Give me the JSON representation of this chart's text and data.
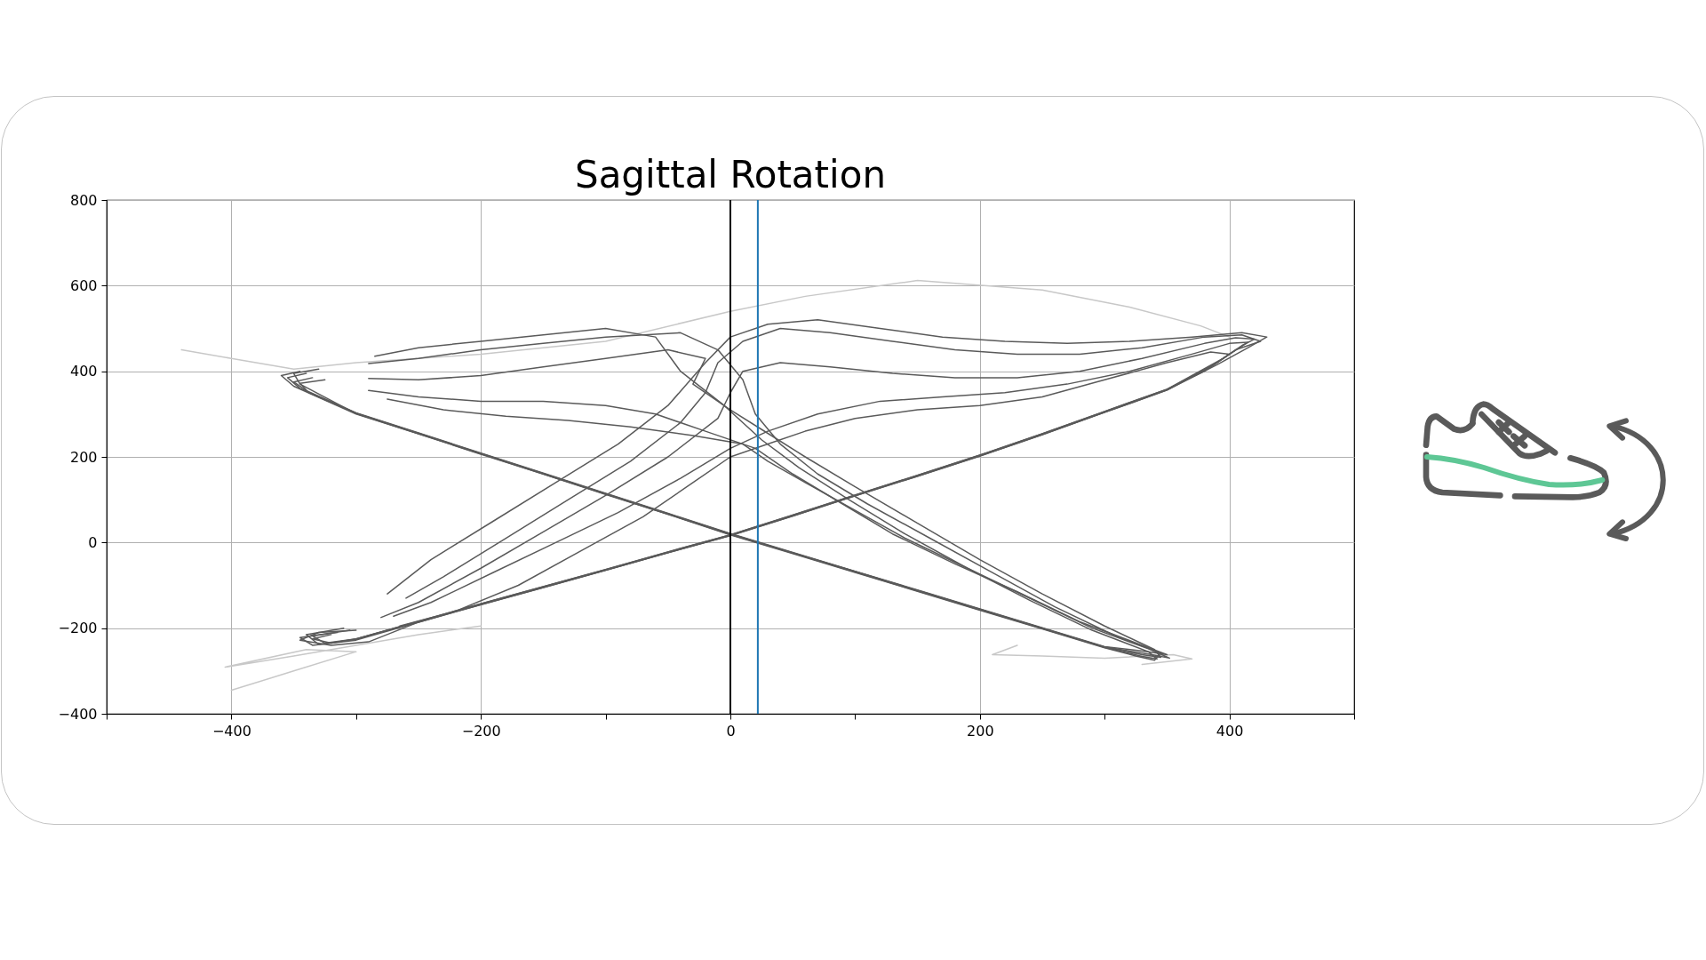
{
  "chart_data": {
    "type": "line",
    "title": "Sagittal Rotation",
    "xlim": [
      -500,
      500
    ],
    "ylim": [
      -400,
      800
    ],
    "xticks": [
      {
        "value": -500,
        "label": null
      },
      {
        "value": -400,
        "label": "−400"
      },
      {
        "value": -300,
        "label": null
      },
      {
        "value": -200,
        "label": "−200"
      },
      {
        "value": -100,
        "label": null
      },
      0,
      {
        "value": 100,
        "label": null
      },
      200,
      {
        "value": 300,
        "label": null
      },
      400,
      {
        "value": 500,
        "label": null
      }
    ],
    "yticks": [
      {
        "value": -400,
        "label": "−400"
      },
      {
        "value": -200,
        "label": "−200"
      },
      0,
      200,
      400,
      600,
      800
    ],
    "grid": true,
    "ref_lines": [
      {
        "axis": "x",
        "value": 0,
        "color": "#000000"
      },
      {
        "axis": "x",
        "value": 22,
        "color": "#1f77b4"
      }
    ],
    "series": [
      {
        "color": "#c8c8c8",
        "x": [
          -440,
          -400,
          -350,
          -300,
          -200,
          -100,
          0,
          60,
          150,
          250,
          320,
          377,
          400
        ],
        "values": [
          450,
          430,
          405,
          420,
          440,
          470,
          540,
          575,
          612,
          590,
          550,
          506,
          480
        ]
      },
      {
        "color": "#c8c8c8",
        "x": [
          -400,
          -350,
          -300,
          -340,
          -405,
          -350,
          -300,
          -250,
          -200
        ],
        "values": [
          -345,
          -300,
          -255,
          -250,
          -291,
          -265,
          -240,
          -215,
          -195
        ]
      },
      {
        "color": "#c8c8c8",
        "x": [
          330,
          370,
          355,
          300,
          250,
          210,
          230
        ],
        "values": [
          -285,
          -272,
          -262,
          -270,
          -265,
          -262,
          -240
        ]
      },
      {
        "color": "#5a5a5a",
        "x": [
          -340,
          -355,
          -345,
          -300,
          -250,
          -200,
          -150,
          -100,
          -50,
          0,
          50,
          100,
          150,
          200,
          250,
          300,
          330,
          345,
          340,
          300,
          250,
          200,
          150,
          100,
          60,
          30,
          0,
          -30,
          -20,
          -50,
          -100,
          -150,
          -200,
          -250,
          -290
        ],
        "values": [
          395,
          385,
          360,
          302,
          255,
          208,
          161,
          114,
          67,
          20,
          -24,
          -68,
          -112,
          -156,
          -200,
          -244,
          -262,
          -268,
          -250,
          -195,
          -120,
          -40,
          45,
          130,
          200,
          255,
          310,
          370,
          430,
          450,
          430,
          410,
          390,
          380,
          383
        ]
      },
      {
        "color": "#5a5a5a",
        "x": [
          -345,
          -360,
          -350,
          -300,
          -250,
          -200,
          -150,
          -100,
          -50,
          0,
          50,
          100,
          150,
          200,
          250,
          300,
          325,
          340,
          345,
          310,
          260,
          210,
          160,
          110,
          70,
          40,
          20,
          10,
          -10,
          -40,
          -100,
          -150,
          -200,
          -250,
          -290
        ],
        "values": [
          400,
          390,
          365,
          300,
          254,
          206,
          160,
          112,
          66,
          18,
          -26,
          -70,
          -114,
          -158,
          -202,
          -246,
          -265,
          -275,
          -258,
          -220,
          -150,
          -70,
          10,
          90,
          160,
          230,
          300,
          380,
          450,
          490,
          480,
          465,
          450,
          430,
          418
        ]
      },
      {
        "color": "#5a5a5a",
        "x": [
          -335,
          -350,
          -340,
          -300,
          -250,
          -200,
          -150,
          -100,
          -50,
          0,
          50,
          100,
          150,
          200,
          250,
          300,
          335,
          350,
          330,
          280,
          230,
          180,
          130,
          90,
          50,
          20,
          -20,
          -60,
          -100,
          -150,
          -200,
          -250,
          -290
        ],
        "values": [
          385,
          375,
          355,
          303,
          256,
          209,
          162,
          115,
          68,
          21,
          -23,
          -67,
          -111,
          -155,
          -199,
          -243,
          -255,
          -262,
          -240,
          -185,
          -115,
          -50,
          20,
          90,
          160,
          220,
          260,
          300,
          320,
          330,
          330,
          340,
          355
        ]
      },
      {
        "color": "#5a5a5a",
        "x": [
          -330,
          -350,
          -345,
          -300,
          -250,
          -200,
          -150,
          -100,
          -50,
          0,
          50,
          100,
          150,
          200,
          250,
          300,
          330,
          342,
          335,
          290,
          240,
          190,
          140,
          95,
          55,
          25,
          -5,
          -40,
          -60,
          -100,
          -150,
          -200,
          -250,
          -285
        ],
        "values": [
          405,
          395,
          370,
          301,
          254,
          207,
          160,
          113,
          66,
          19,
          -25,
          -69,
          -113,
          -157,
          -201,
          -245,
          -266,
          -272,
          -255,
          -205,
          -135,
          -60,
          20,
          100,
          175,
          240,
          320,
          400,
          480,
          500,
          485,
          470,
          455,
          435
        ]
      },
      {
        "color": "#5a5a5a",
        "x": [
          -325,
          -345,
          -338,
          -300,
          -250,
          -200,
          -150,
          -100,
          -50,
          0,
          50,
          100,
          150,
          200,
          250,
          300,
          338,
          352,
          335,
          290,
          240,
          190,
          140,
          100,
          60,
          30,
          10,
          -30,
          -80,
          -130,
          -180,
          -230,
          -275
        ],
        "values": [
          380,
          372,
          350,
          302,
          255,
          208,
          161,
          114,
          67,
          20,
          -24,
          -68,
          -112,
          -156,
          -200,
          -244,
          -262,
          -270,
          -248,
          -200,
          -130,
          -60,
          10,
          75,
          140,
          190,
          230,
          250,
          270,
          285,
          295,
          310,
          335
        ]
      },
      {
        "color": "#5a5a5a",
        "x": [
          -320,
          -335,
          -320,
          -300,
          -250,
          -200,
          -150,
          -100,
          -50,
          0,
          50,
          100,
          150,
          200,
          250,
          300,
          350,
          390,
          410,
          420,
          405,
          380,
          330,
          280,
          230,
          180,
          130,
          80,
          40,
          10,
          0,
          -10,
          -50,
          -100,
          -150,
          -200,
          -250,
          -280
        ],
        "values": [
          -215,
          -225,
          -235,
          -225,
          -185,
          -144,
          -104,
          -64,
          -23,
          17,
          63,
          110,
          156,
          203,
          253,
          305,
          357,
          420,
          460,
          475,
          478,
          465,
          430,
          400,
          385,
          385,
          395,
          410,
          420,
          400,
          350,
          290,
          200,
          110,
          25,
          -60,
          -140,
          -175
        ]
      },
      {
        "color": "#5a5a5a",
        "x": [
          -300,
          -330,
          -345,
          -320,
          -290,
          -250,
          -200,
          -150,
          -100,
          -50,
          0,
          50,
          100,
          150,
          200,
          250,
          300,
          350,
          385,
          405,
          425,
          410,
          380,
          330,
          280,
          230,
          180,
          130,
          80,
          40,
          10,
          -10,
          -20,
          -40,
          -80,
          -130,
          -180,
          -230,
          -260
        ],
        "values": [
          -205,
          -210,
          -228,
          -240,
          -232,
          -186,
          -145,
          -105,
          -65,
          -24,
          16,
          62,
          109,
          155,
          202,
          252,
          304,
          356,
          410,
          450,
          470,
          485,
          480,
          455,
          440,
          440,
          450,
          470,
          490,
          500,
          470,
          420,
          350,
          280,
          190,
          100,
          10,
          -80,
          -130
        ]
      },
      {
        "color": "#5a5a5a",
        "x": [
          -310,
          -340,
          -330,
          -300,
          -250,
          -200,
          -150,
          -100,
          -50,
          0,
          50,
          100,
          150,
          200,
          250,
          300,
          350,
          395,
          415,
          400,
          370,
          320,
          270,
          220,
          170,
          120,
          70,
          30,
          0,
          -40,
          -90,
          -140,
          -190,
          -240,
          -270
        ],
        "values": [
          -200,
          -215,
          -238,
          -226,
          -184,
          -143,
          -103,
          -63,
          -22,
          18,
          64,
          111,
          157,
          204,
          254,
          306,
          358,
          430,
          468,
          465,
          440,
          400,
          370,
          350,
          340,
          330,
          300,
          260,
          220,
          150,
          70,
          0,
          -70,
          -140,
          -172
        ]
      },
      {
        "color": "#5a5a5a",
        "x": [
          -315,
          -345,
          -335,
          -300,
          -250,
          -200,
          -150,
          -100,
          -50,
          0,
          50,
          100,
          150,
          200,
          250,
          300,
          350,
          390,
          415,
          430,
          410,
          370,
          320,
          270,
          220,
          170,
          120,
          70,
          30,
          0,
          -20,
          -50,
          -90,
          -140,
          -190,
          -240,
          -275
        ],
        "values": [
          -210,
          -222,
          -240,
          -228,
          -186,
          -145,
          -105,
          -65,
          -24,
          16,
          62,
          109,
          155,
          202,
          252,
          304,
          356,
          415,
          455,
          480,
          490,
          480,
          470,
          465,
          470,
          480,
          500,
          520,
          510,
          480,
          420,
          320,
          230,
          140,
          50,
          -40,
          -120
        ]
      },
      {
        "color": "#5a5a5a",
        "x": [
          -305,
          -335,
          -325,
          -300,
          -250,
          -200,
          -150,
          -100,
          -50,
          0,
          50,
          100,
          150,
          200,
          250,
          300,
          350,
          380,
          400,
          385,
          350,
          300,
          250,
          200,
          150,
          100,
          60,
          30,
          0,
          -30,
          -70,
          -120,
          -170,
          -220,
          -265
        ],
        "values": [
          -205,
          -218,
          -235,
          -225,
          -184,
          -143,
          -103,
          -63,
          -22,
          18,
          64,
          111,
          157,
          204,
          254,
          306,
          358,
          400,
          440,
          445,
          420,
          380,
          340,
          320,
          310,
          290,
          260,
          230,
          200,
          140,
          60,
          -20,
          -100,
          -160,
          -195
        ]
      }
    ]
  }
}
